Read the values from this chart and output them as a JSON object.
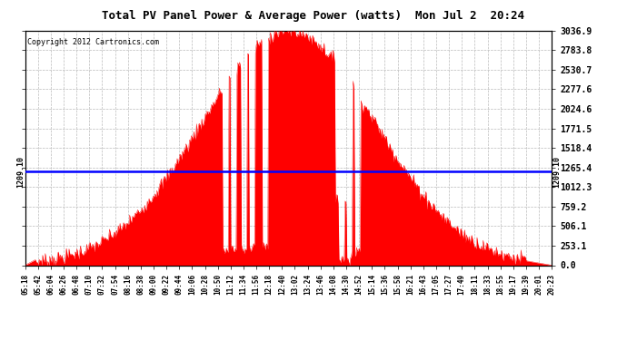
{
  "title": "Total PV Panel Power & Average Power (watts)  Mon Jul 2  20:24",
  "copyright": "Copyright 2012 Cartronics.com",
  "average_value": 1209.1,
  "y_max": 3036.9,
  "y_ticks": [
    0.0,
    253.1,
    506.1,
    759.2,
    1012.3,
    1265.4,
    1518.4,
    1771.5,
    2024.6,
    2277.6,
    2530.7,
    2783.8,
    3036.9
  ],
  "fill_color": "#FF0000",
  "line_color": "#0000FF",
  "background_color": "#FFFFFF",
  "grid_color": "#BBBBBB",
  "x_labels": [
    "05:18",
    "05:42",
    "06:04",
    "06:26",
    "06:48",
    "07:10",
    "07:32",
    "07:54",
    "08:16",
    "08:38",
    "09:00",
    "09:22",
    "09:44",
    "10:06",
    "10:28",
    "10:50",
    "11:12",
    "11:34",
    "11:56",
    "12:18",
    "12:40",
    "13:02",
    "13:24",
    "13:46",
    "14:08",
    "14:30",
    "14:52",
    "15:14",
    "15:36",
    "15:58",
    "16:21",
    "16:43",
    "17:05",
    "17:27",
    "17:49",
    "18:11",
    "18:33",
    "18:55",
    "19:17",
    "19:39",
    "20:01",
    "20:23"
  ]
}
